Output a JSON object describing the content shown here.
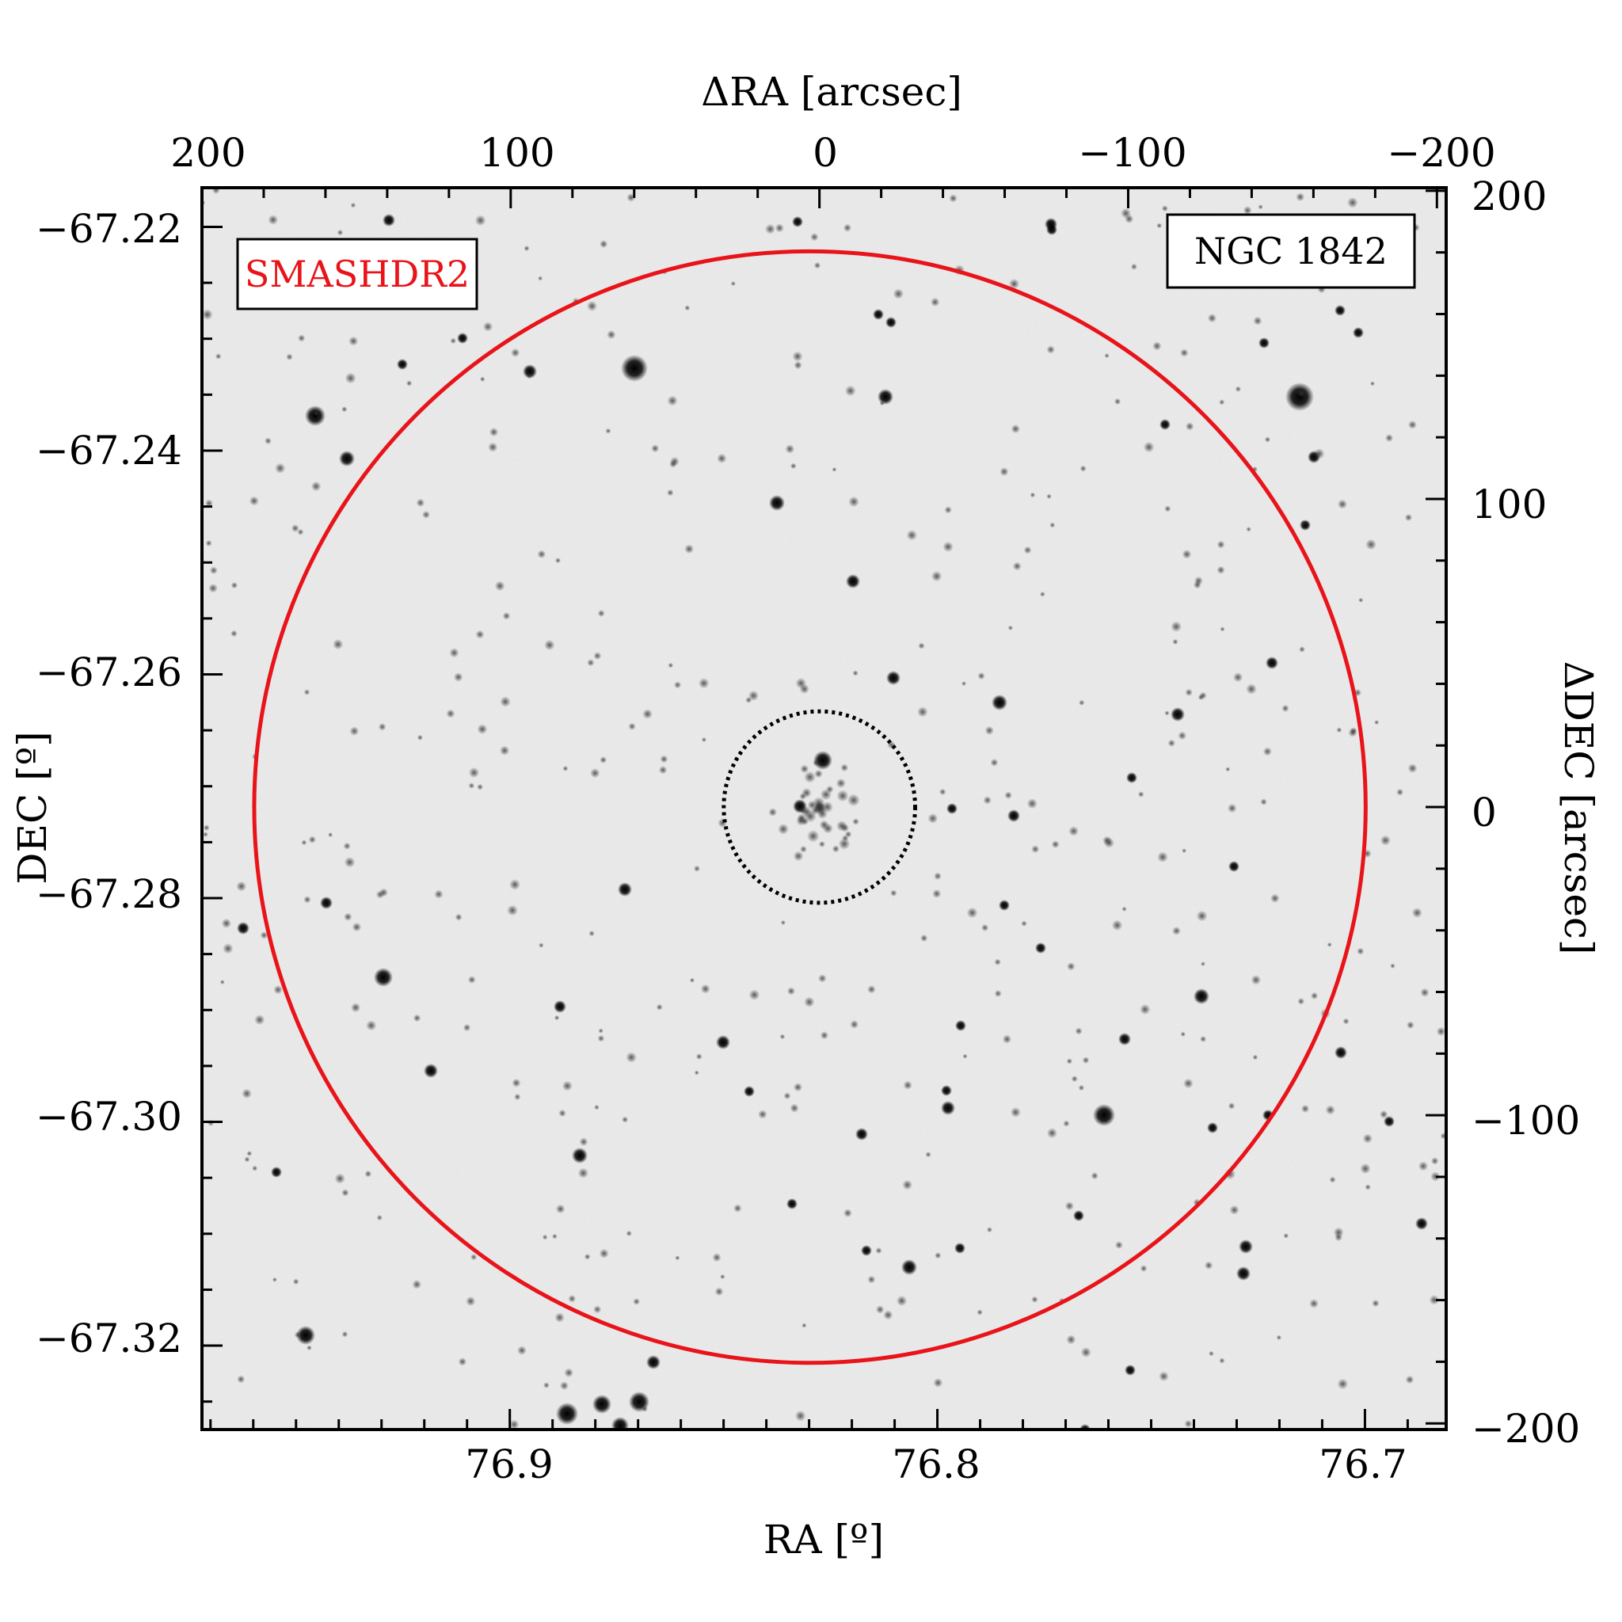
{
  "figure": {
    "object_label": "NGC 1842",
    "survey_label": "SMASHDR2",
    "survey_color": "#e8141a",
    "top_axis_label": "ΔRA [arcsec]",
    "right_axis_label": "ΔDEC [arcsec]",
    "bottom_axis_label": "RA [º]",
    "left_axis_label": "DEC [º]",
    "background": "inverted-grayscale-star-field"
  },
  "axes": {
    "ra": {
      "ticks": [
        "76.9",
        "76.8",
        "76.7"
      ],
      "range": [
        76.972,
        76.681
      ],
      "reversed": true
    },
    "dec": {
      "ticks": [
        "−67.22",
        "−67.24",
        "−67.26",
        "−67.28",
        "−67.30",
        "−67.32"
      ],
      "range": [
        -67.2165,
        -67.3275
      ]
    },
    "dra": {
      "ticks": [
        "200",
        "100",
        "0",
        "−100",
        "−200"
      ],
      "range": [
        200,
        -203
      ]
    },
    "ddec": {
      "ticks": [
        "200",
        "100",
        "0",
        "−100",
        "−200"
      ],
      "range": [
        201,
        -202
      ]
    }
  },
  "overlays": {
    "outer_circle": {
      "radius_arcsec": 180,
      "color": "#e8141a",
      "style": "solid"
    },
    "inner_circle": {
      "radius_arcsec": 31,
      "color": "#000000",
      "style": "dotted"
    }
  }
}
